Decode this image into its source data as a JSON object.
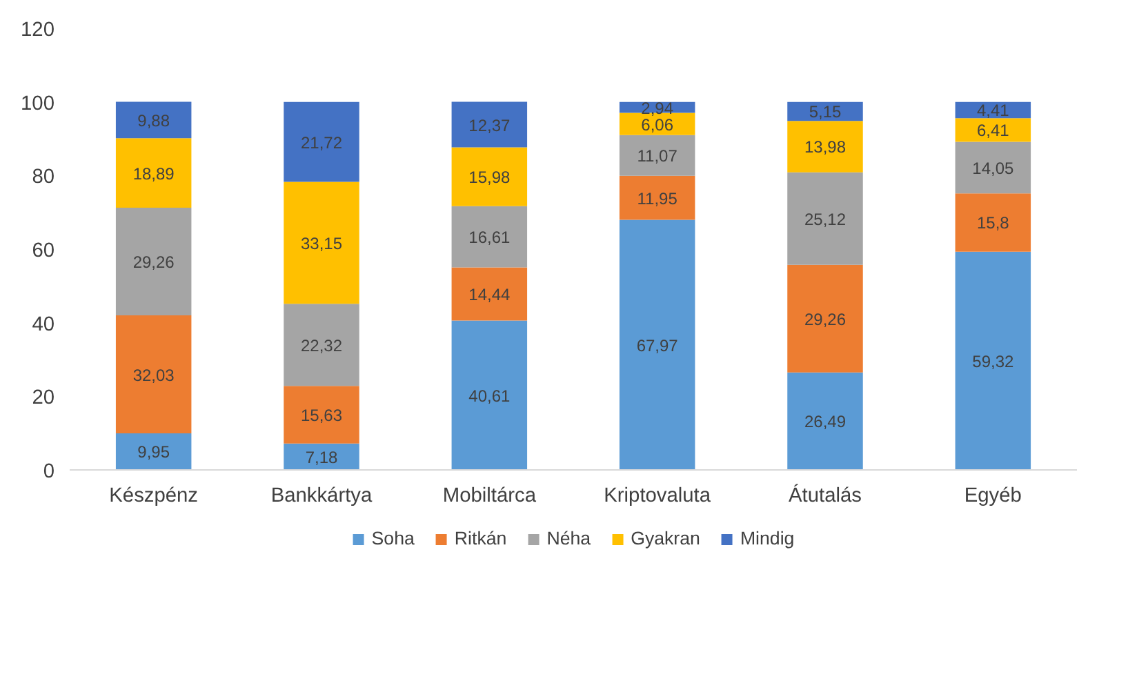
{
  "chart_data": {
    "type": "bar",
    "stacked": true,
    "categories": [
      "Készpénz",
      "Bankkártya",
      "Mobiltárca",
      "Kriptovaluta",
      "Átutalás",
      "Egyéb"
    ],
    "ylim": [
      0,
      120
    ],
    "yticks": [
      0,
      20,
      40,
      60,
      80,
      100,
      120
    ],
    "grid": false,
    "legend": "bottom",
    "series": [
      {
        "name": "Soha",
        "color": "#5b9bd5",
        "values": [
          9.95,
          7.18,
          40.61,
          67.97,
          26.49,
          59.32
        ],
        "value_labels": [
          "9,95",
          "7,18",
          "40,61",
          "67,97",
          "26,49",
          "59,32"
        ]
      },
      {
        "name": "Ritkán",
        "color": "#ed7d31",
        "values": [
          32.03,
          15.63,
          14.44,
          11.95,
          29.26,
          15.8
        ],
        "value_labels": [
          "32,03",
          "15,63",
          "14,44",
          "11,95",
          "29,26",
          "15,8"
        ]
      },
      {
        "name": "Néha",
        "color": "#a5a5a5",
        "values": [
          29.26,
          22.32,
          16.61,
          11.07,
          25.12,
          14.05
        ],
        "value_labels": [
          "29,26",
          "22,32",
          "16,61",
          "11,07",
          "25,12",
          "14,05"
        ]
      },
      {
        "name": "Gyakran",
        "color": "#ffc000",
        "values": [
          18.89,
          33.15,
          15.98,
          6.06,
          13.98,
          6.41
        ],
        "value_labels": [
          "18,89",
          "33,15",
          "15,98",
          "6,06",
          "13,98",
          "6,41"
        ]
      },
      {
        "name": "Mindig",
        "color": "#4472c4",
        "values": [
          9.88,
          21.72,
          12.37,
          2.94,
          5.15,
          4.41
        ],
        "value_labels": [
          "9,88",
          "21,72",
          "12,37",
          "2,94",
          "5,15",
          "4,41"
        ]
      }
    ]
  }
}
